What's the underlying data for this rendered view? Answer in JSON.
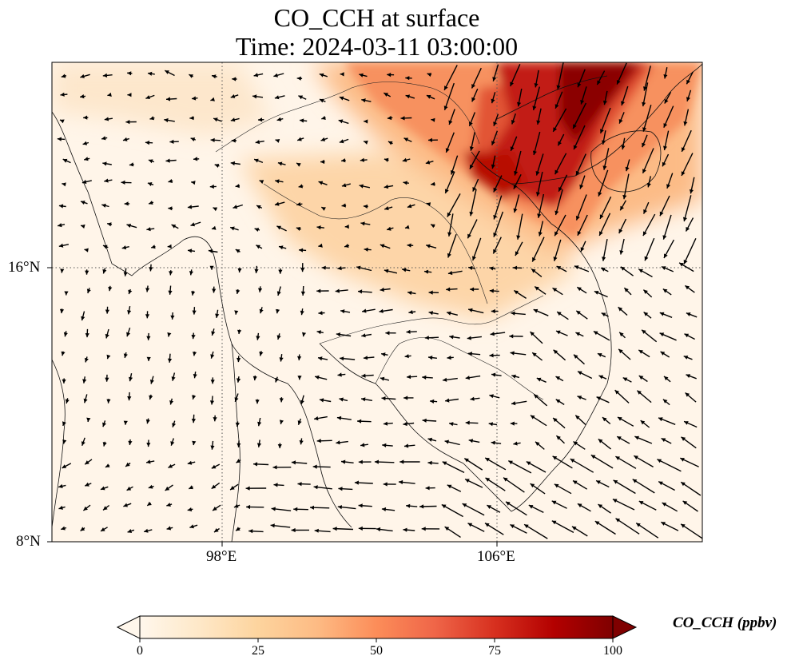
{
  "title": {
    "line1": "CO_CCH at surface",
    "line2": "Time: 2024-03-11 03:00:00"
  },
  "axes": {
    "lon_labels": [
      "98°E",
      "106°E"
    ],
    "lat_labels": [
      "16°N",
      "8°N"
    ],
    "lon_range": [
      93,
      112
    ],
    "lat_range": [
      8,
      22
    ]
  },
  "colorbar": {
    "label": "CO_CCH (ppbv)",
    "ticks": [
      "0",
      "25",
      "50",
      "75",
      "100"
    ],
    "range": [
      0,
      100
    ],
    "extend": "both",
    "colormap": "OrRd",
    "colors": [
      "#fff7ec",
      "#fee8c8",
      "#fdd49e",
      "#fdbb84",
      "#fc8d59",
      "#ef6548",
      "#d7301f",
      "#b30000",
      "#7f0000"
    ]
  },
  "map": {
    "gridlines": "dotted",
    "wind_vectors": true,
    "features": [
      "coastlines",
      "country-borders"
    ]
  }
}
